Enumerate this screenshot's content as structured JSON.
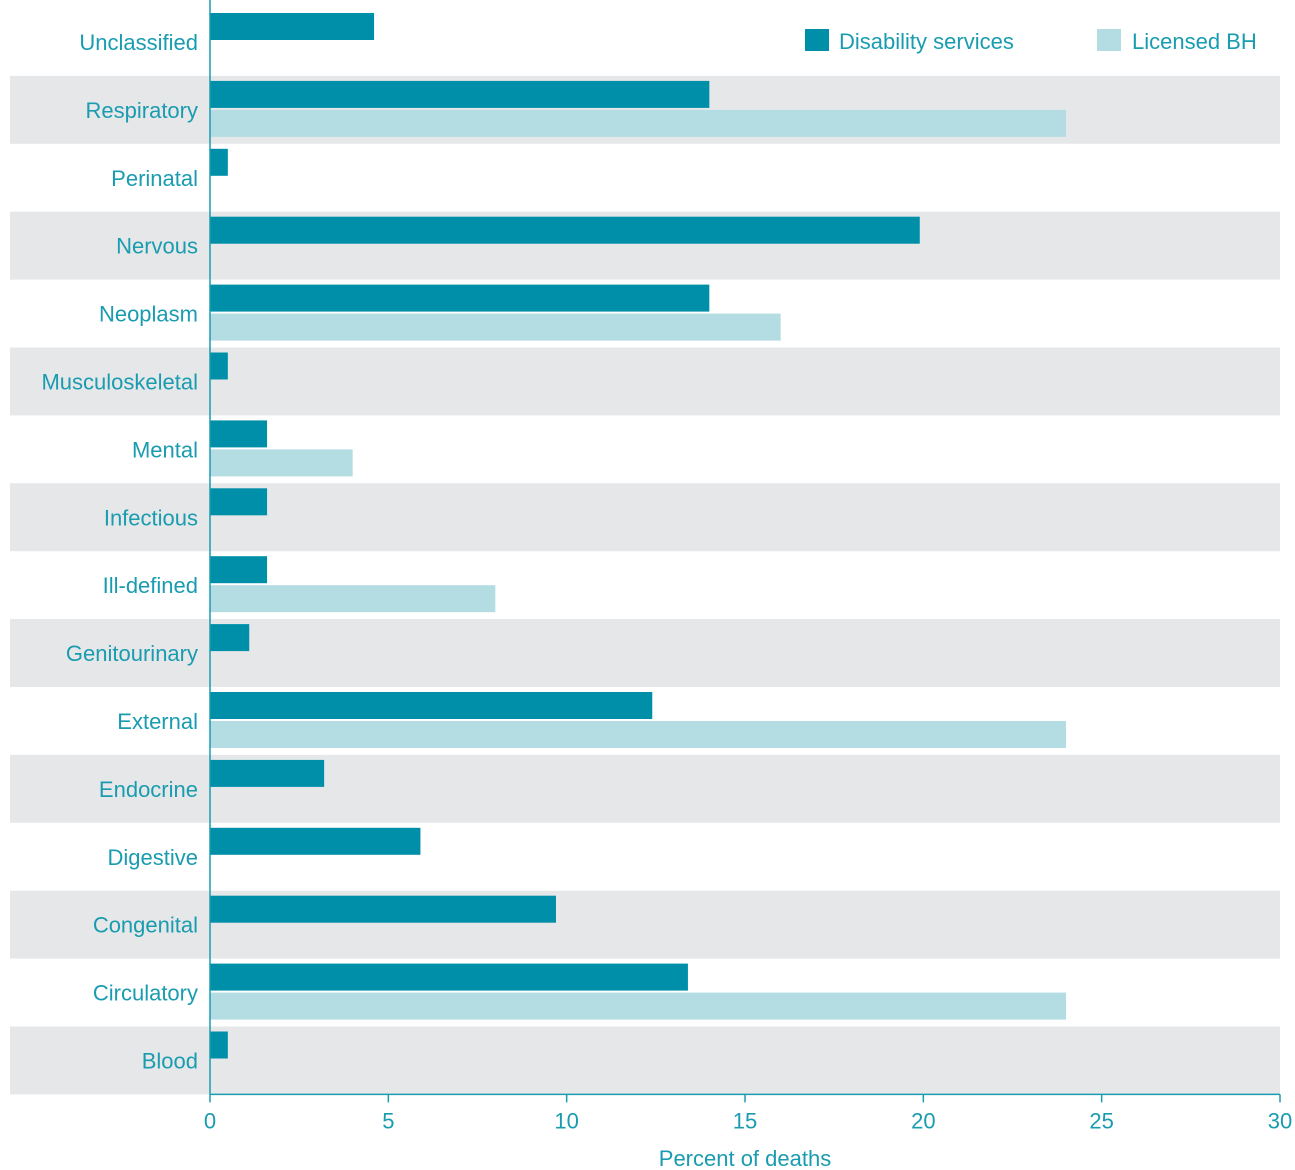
{
  "chart_data": {
    "type": "bar",
    "orientation": "horizontal",
    "categories": [
      "Unclassified",
      "Respiratory",
      "Perinatal",
      "Nervous",
      "Neoplasm",
      "Musculoskeletal",
      "Mental",
      "Infectious",
      "Ill-defined",
      "Genitourinary",
      "External",
      "Endocrine",
      "Digestive",
      "Congenital",
      "Circulatory",
      "Blood"
    ],
    "series": [
      {
        "name": "Disability  services",
        "color": "#008fa8",
        "values": [
          4.6,
          14,
          0.5,
          19.9,
          14,
          0.5,
          1.6,
          1.6,
          1.6,
          1.1,
          12.4,
          3.2,
          5.9,
          9.7,
          13.4,
          0.5
        ]
      },
      {
        "name": "Licensed BH",
        "color": "#b3dde2",
        "values": [
          null,
          24,
          null,
          null,
          16,
          null,
          4,
          null,
          8,
          null,
          24,
          null,
          null,
          null,
          24,
          null
        ]
      }
    ],
    "xlabel": "Percent of deaths",
    "xlim": [
      0,
      30
    ],
    "xticks": [
      "0",
      "5",
      "10",
      "15",
      "20",
      "25",
      "30"
    ],
    "grid": false,
    "legend_position": "top-right",
    "band_color": "#e6e7e9",
    "label_color": "#1a9cb0"
  }
}
